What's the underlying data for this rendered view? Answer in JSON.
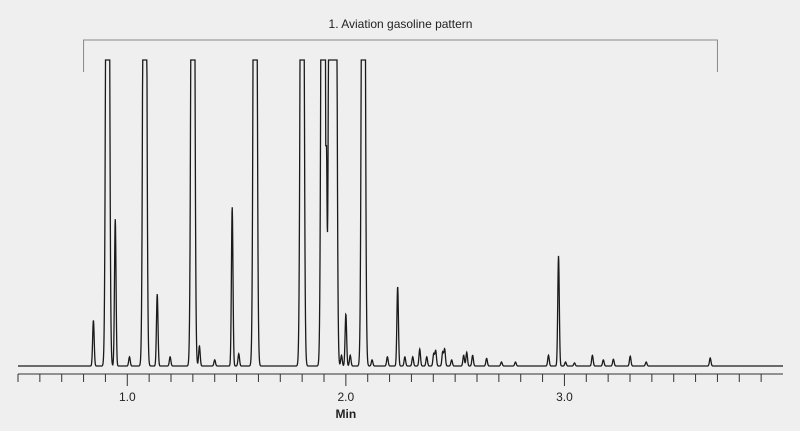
{
  "chart_data": {
    "type": "line",
    "title": "",
    "xlabel": "Min",
    "ylabel": "",
    "xlim": [
      0.5,
      4.0
    ],
    "ylim": [
      0,
      100
    ],
    "x_ticks_major": [
      1.0,
      2.0,
      3.0
    ],
    "x_tick_labels": [
      "1.0",
      "2.0",
      "3.0"
    ],
    "x_minor_tick_step": 0.1,
    "grid": false,
    "line_color": "#1a1a1a",
    "annotation": {
      "text": "1.  Aviation gasoline pattern",
      "range": [
        0.8,
        3.7
      ]
    },
    "peaks_note": "relative response; peaks at 100 are off-scale (flat-topped)",
    "peaks": [
      {
        "t": 0.845,
        "h": 15
      },
      {
        "t": 0.91,
        "h": 100,
        "clipped": true
      },
      {
        "t": 0.945,
        "h": 48
      },
      {
        "t": 1.01,
        "h": 3
      },
      {
        "t": 1.08,
        "h": 100,
        "clipped": true
      },
      {
        "t": 1.137,
        "h": 23.5
      },
      {
        "t": 1.196,
        "h": 3
      },
      {
        "t": 1.3,
        "h": 100,
        "clipped": true
      },
      {
        "t": 1.33,
        "h": 6.5
      },
      {
        "t": 1.4,
        "h": 2
      },
      {
        "t": 1.48,
        "h": 52
      },
      {
        "t": 1.51,
        "h": 4
      },
      {
        "t": 1.585,
        "h": 100,
        "clipped": true
      },
      {
        "t": 1.8,
        "h": 100,
        "clipped": true
      },
      {
        "t": 1.895,
        "h": 100,
        "clipped": true
      },
      {
        "t": 1.91,
        "h": 72
      },
      {
        "t": 1.93,
        "h": 100,
        "clipped": true
      },
      {
        "t": 1.95,
        "h": 100,
        "clipped": true
      },
      {
        "t": 1.98,
        "h": 3.5
      },
      {
        "t": 2.0,
        "h": 17
      },
      {
        "t": 2.02,
        "h": 3.5
      },
      {
        "t": 2.08,
        "h": 100,
        "clipped": true
      },
      {
        "t": 2.12,
        "h": 2
      },
      {
        "t": 2.19,
        "h": 3
      },
      {
        "t": 2.237,
        "h": 26
      },
      {
        "t": 2.27,
        "h": 3
      },
      {
        "t": 2.306,
        "h": 3
      },
      {
        "t": 2.338,
        "h": 5.5
      },
      {
        "t": 2.37,
        "h": 3
      },
      {
        "t": 2.402,
        "h": 4
      },
      {
        "t": 2.411,
        "h": 5
      },
      {
        "t": 2.443,
        "h": 4.5
      },
      {
        "t": 2.452,
        "h": 5.5
      },
      {
        "t": 2.484,
        "h": 2
      },
      {
        "t": 2.539,
        "h": 3.5
      },
      {
        "t": 2.553,
        "h": 4.5
      },
      {
        "t": 2.58,
        "h": 3.5
      },
      {
        "t": 2.644,
        "h": 2.5
      },
      {
        "t": 2.712,
        "h": 1.3
      },
      {
        "t": 2.776,
        "h": 1.3
      },
      {
        "t": 2.927,
        "h": 3.5
      },
      {
        "t": 2.973,
        "h": 36
      },
      {
        "t": 3.005,
        "h": 1.3
      },
      {
        "t": 3.046,
        "h": 1
      },
      {
        "t": 3.128,
        "h": 3.5
      },
      {
        "t": 3.178,
        "h": 2
      },
      {
        "t": 3.224,
        "h": 2.2
      },
      {
        "t": 3.301,
        "h": 3.2
      },
      {
        "t": 3.374,
        "h": 1.3
      },
      {
        "t": 3.667,
        "h": 2.6
      }
    ]
  }
}
